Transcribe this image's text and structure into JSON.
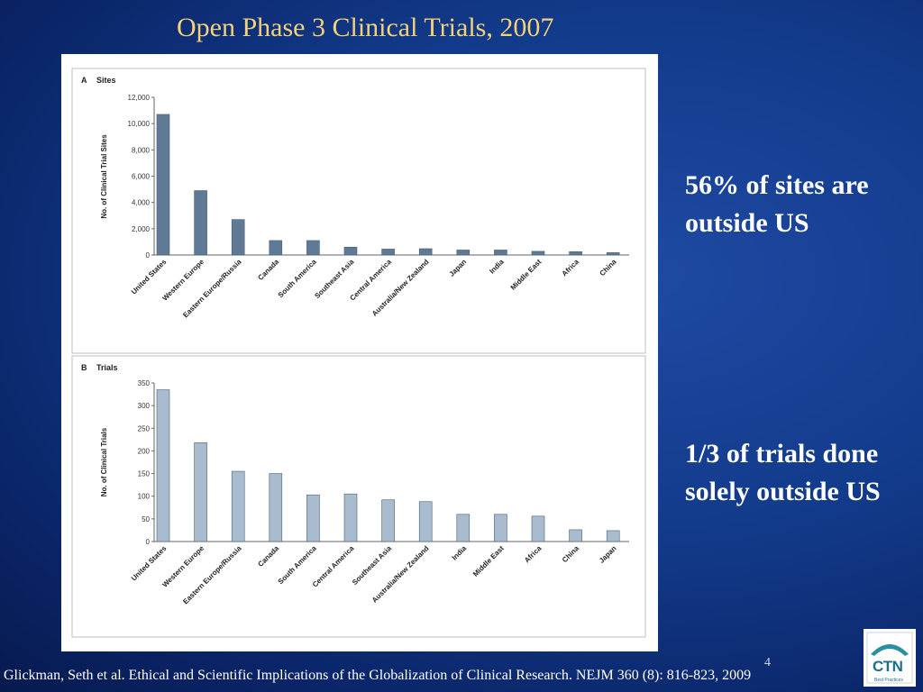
{
  "slide": {
    "title": "Open Phase 3 Clinical Trials, 2007",
    "callout_sites": "56% of sites are outside US",
    "callout_trials": "1/3 of trials done solely outside US",
    "page_number": "4",
    "citation": "Glickman, Seth et al. Ethical and Scientific Implications of the Globalization of Clinical Research. NEJM 360 (8): 816-823, 2009",
    "logo_text": "CTN",
    "logo_subtext": "Best Practices"
  },
  "colors": {
    "sites_bar": "#5f7a94",
    "trials_bar": "#a9bccf",
    "title_text": "#f3d27a"
  },
  "chart_data": [
    {
      "type": "bar",
      "panel_letter": "A",
      "title": "Sites",
      "ylabel": "No. of Clinical Trial Sites",
      "xlabel": "",
      "ylim": [
        0,
        12000
      ],
      "yticks": [
        "0",
        "2,000",
        "4,000",
        "6,000",
        "8,000",
        "10,000",
        "12,000"
      ],
      "ytick_values": [
        0,
        2000,
        4000,
        6000,
        8000,
        10000,
        12000
      ],
      "grid": false,
      "categories": [
        "United States",
        "Western Europe",
        "Eastern Europe/Russia",
        "Canada",
        "South America",
        "Southeast Asia",
        "Central America",
        "Australia/New Zealand",
        "Japan",
        "India",
        "Middle East",
        "Africa",
        "China"
      ],
      "values": [
        10700,
        4900,
        2700,
        1100,
        1100,
        600,
        450,
        480,
        380,
        380,
        280,
        250,
        180
      ]
    },
    {
      "type": "bar",
      "panel_letter": "B",
      "title": "Trials",
      "ylabel": "No. of Clinical Trials",
      "xlabel": "",
      "ylim": [
        0,
        350
      ],
      "yticks": [
        "0",
        "50",
        "100",
        "150",
        "200",
        "250",
        "300",
        "350"
      ],
      "ytick_values": [
        0,
        50,
        100,
        150,
        200,
        250,
        300,
        350
      ],
      "grid": false,
      "categories": [
        "United States",
        "Western Europe",
        "Eastern Europe/Russia",
        "Canada",
        "South America",
        "Central America",
        "Southeast Asia",
        "Australia/New Zealand",
        "India",
        "Middle East",
        "Africa",
        "China",
        "Japan"
      ],
      "values": [
        335,
        218,
        155,
        150,
        103,
        105,
        92,
        88,
        60,
        60,
        56,
        26,
        24
      ]
    }
  ]
}
